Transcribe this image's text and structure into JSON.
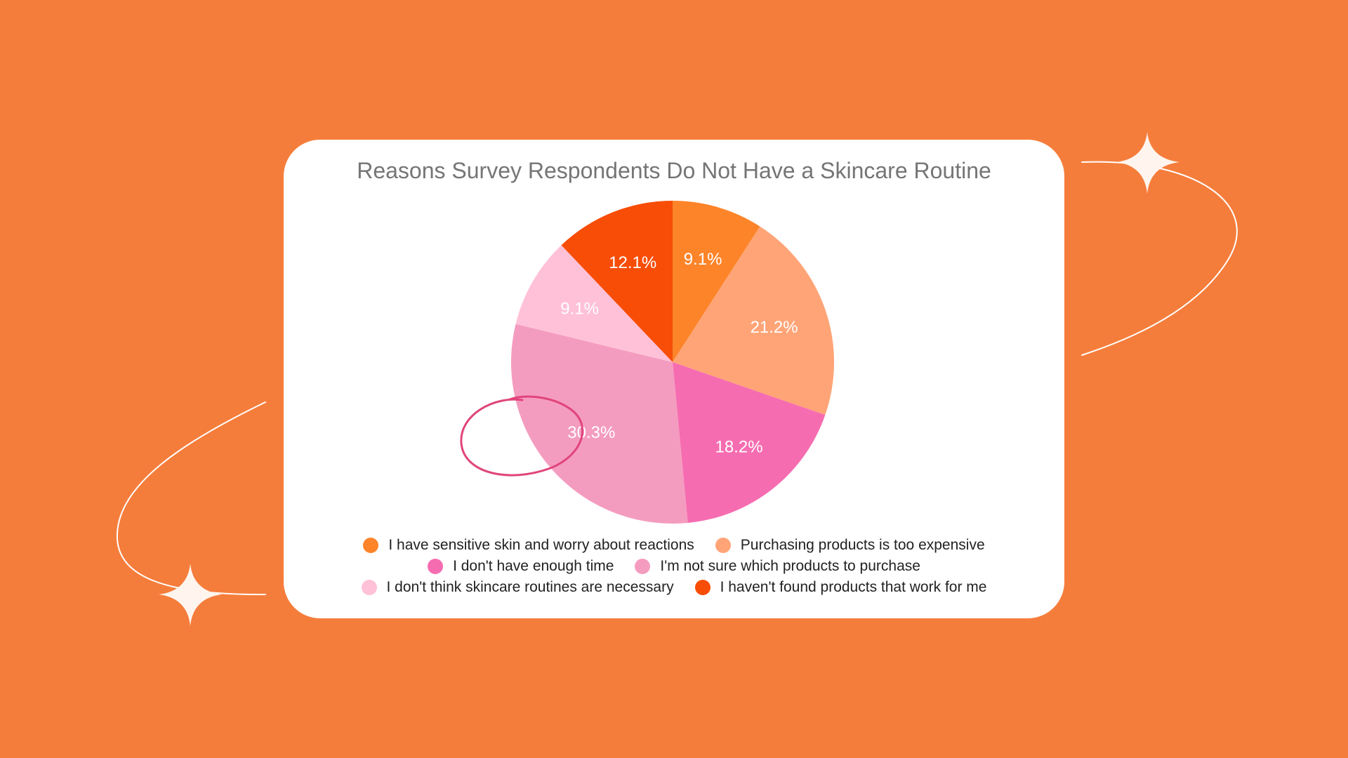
{
  "colors": {
    "background": "#F57D3B",
    "card": "#FFFFFF",
    "annotation_circle": "#E0457B",
    "sparkle": "#FFF5EE"
  },
  "chart_data": {
    "type": "pie",
    "title": "Reasons Survey Respondents Do Not Have a Skincare Routine",
    "start_angle_deg": 0,
    "direction": "clockwise",
    "slices": [
      {
        "label": "I have sensitive skin and worry about reactions",
        "value": 9.1,
        "display": "9.1%",
        "color": "#FD8429"
      },
      {
        "label": "Purchasing products is too expensive",
        "value": 21.2,
        "display": "21.2%",
        "color": "#FFA477"
      },
      {
        "label": "I don't have enough time",
        "value": 18.2,
        "display": "18.2%",
        "color": "#F66CB1"
      },
      {
        "label": "I'm not sure which products to purchase",
        "value": 30.3,
        "display": "30.3%",
        "color": "#F49CBF"
      },
      {
        "label": "I don't think skincare routines are necessary",
        "value": 9.1,
        "display": "9.1%",
        "color": "#FFC1D8"
      },
      {
        "label": "I haven't found products that work for me",
        "value": 12.1,
        "display": "12.1%",
        "color": "#F74D07"
      }
    ],
    "highlighted_slice_index": 3,
    "legend_placement": "bottom",
    "legend_rows": [
      [
        0,
        1
      ],
      [
        2,
        3
      ],
      [
        4,
        5
      ]
    ]
  }
}
